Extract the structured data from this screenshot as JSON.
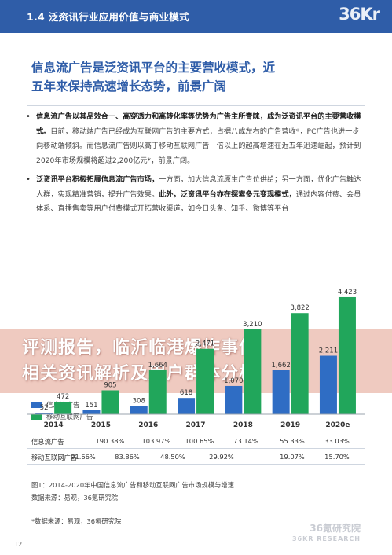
{
  "header": {
    "title": "1.4 泛资讯行业应用价值与商业模式",
    "logo": "36Kr"
  },
  "headline": {
    "line1": "信息流广告是泛资讯平台的主要营收模式，近",
    "line2": "五年来保持高速增长态势，前景广阔"
  },
  "paragraphs": [
    {
      "bullet": "•",
      "bold": "信息流广告以其品效合一、高穿透力和高转化率等优势为广告主所青睐，成为泛资讯平台的主要营收模式。",
      "text": "目前，移动端广告已经成为互联网广告的主要方式，占据八成左右的广告营收*，PC广告也进一步向移动端倾斜。而信息流广告则以高于移动互联网广告一倍以上的超高增速在近五年迅速崛起，预计到2020年市场规模将超过2,200亿元*，前景广阔。"
    },
    {
      "bullet": "•",
      "bold": "泛资讯平台积极拓展信息流广告市场，",
      "text": "一方面，加大信息流原生广告位供给；另一方面，优化广告触达人群，实现精准营销，提升广告效果。",
      "bold2": "此外，泛资讯平台亦在探索多元变现模式，",
      "text2": "通过内容付费、会员体系、直播售卖等用户付费模式开拓营收渠道，如今日头条、知乎、微博等平台"
    }
  ],
  "banner": {
    "line1": "评测报告，临沂临港爆炸事件",
    "line2": "相关资讯解析及用户群体分析"
  },
  "legend": [
    {
      "name": "信息流广告",
      "color": "#2f6dc4"
    },
    {
      "name": "移动互联网广告",
      "color": "#21a65b"
    }
  ],
  "chart_data": {
    "type": "bar",
    "categories": [
      "2014",
      "2015",
      "2016",
      "2017",
      "2018",
      "2019",
      "2020e"
    ],
    "series": [
      {
        "name": "信息流广告",
        "color": "#2f6dc4",
        "values": [
          52,
          151,
          308,
          618,
          1070,
          1662,
          2211
        ],
        "labels": [
          "52",
          "151",
          "308",
          "618",
          "1,070",
          "1,662",
          "2,211"
        ]
      },
      {
        "name": "移动互联网广告",
        "color": "#21a65b",
        "values": [
          472,
          905,
          1664,
          2471,
          3210,
          3822,
          4423
        ],
        "labels": [
          "472",
          "905",
          "1,664",
          "2,471",
          "3,210",
          "3,822",
          "4,423"
        ]
      }
    ],
    "growth_rows": [
      {
        "label": "信息流广告",
        "values": [
          "190.38%",
          "103.97%",
          "100.65%",
          "73.14%",
          "55.33%",
          "33.03%"
        ]
      },
      {
        "label": "移动互联网广告",
        "values": [
          "91.66%",
          "83.86%",
          "48.50%",
          "29.92%",
          "19.07%",
          "15.70%"
        ]
      }
    ],
    "ylim": [
      0,
      4600
    ]
  },
  "sources": {
    "caption": "图1：2014-2020年中国信息流广告和移动互联网广告市场规模与增速",
    "source1": "数据来源：易观，36氪研究院",
    "source2": "*数据来源：易观，36氪研究院"
  },
  "watermark": {
    "cn": "36氪研究院",
    "en": "36KR RESEARCH"
  },
  "page_number": "12"
}
